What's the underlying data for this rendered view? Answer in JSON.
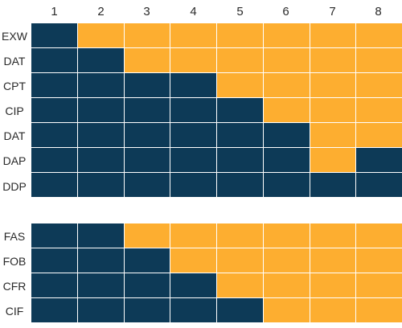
{
  "colors": {
    "seller": "#0d3a57",
    "buyer": "#fdae30"
  },
  "columns": [
    "1",
    "2",
    "3",
    "4",
    "5",
    "6",
    "7",
    "8"
  ],
  "groups": [
    {
      "rows": [
        {
          "label": "EXW",
          "cells": [
            "seller",
            "buyer",
            "buyer",
            "buyer",
            "buyer",
            "buyer",
            "buyer",
            "buyer"
          ]
        },
        {
          "label": "DAT",
          "cells": [
            "seller",
            "seller",
            "buyer",
            "buyer",
            "buyer",
            "buyer",
            "buyer",
            "buyer"
          ]
        },
        {
          "label": "CPT",
          "cells": [
            "seller",
            "seller",
            "seller",
            "seller",
            "buyer",
            "buyer",
            "buyer",
            "buyer"
          ]
        },
        {
          "label": "CIP",
          "cells": [
            "seller",
            "seller",
            "seller",
            "seller",
            "seller",
            "buyer",
            "buyer",
            "buyer"
          ]
        },
        {
          "label": "DAT",
          "cells": [
            "seller",
            "seller",
            "seller",
            "seller",
            "seller",
            "seller",
            "buyer",
            "buyer"
          ]
        },
        {
          "label": "DAP",
          "cells": [
            "seller",
            "seller",
            "seller",
            "seller",
            "seller",
            "seller",
            "buyer",
            "seller"
          ]
        },
        {
          "label": "DDP",
          "cells": [
            "seller",
            "seller",
            "seller",
            "seller",
            "seller",
            "seller",
            "seller",
            "seller"
          ]
        }
      ]
    },
    {
      "rows": [
        {
          "label": "FAS",
          "cells": [
            "seller",
            "seller",
            "buyer",
            "buyer",
            "buyer",
            "buyer",
            "buyer",
            "buyer"
          ]
        },
        {
          "label": "FOB",
          "cells": [
            "seller",
            "seller",
            "seller",
            "buyer",
            "buyer",
            "buyer",
            "buyer",
            "buyer"
          ]
        },
        {
          "label": "CFR",
          "cells": [
            "seller",
            "seller",
            "seller",
            "seller",
            "buyer",
            "buyer",
            "buyer",
            "buyer"
          ]
        },
        {
          "label": "CIF",
          "cells": [
            "seller",
            "seller",
            "seller",
            "seller",
            "seller",
            "buyer",
            "buyer",
            "buyer"
          ]
        }
      ]
    }
  ]
}
